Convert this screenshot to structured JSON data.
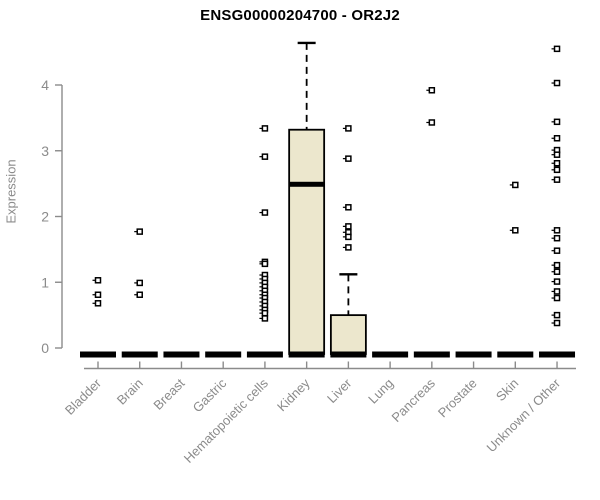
{
  "chart_data": {
    "type": "box",
    "title": "ENSG00000204700 - OR2J2",
    "ylabel": "Expression",
    "xlabel": "",
    "ylim": [
      0,
      4.8
    ],
    "yticks": [
      0,
      1,
      2,
      3,
      4
    ],
    "grid": false,
    "legend": "none",
    "categories": [
      "Bladder",
      "Brain",
      "Breast",
      "Gastric",
      "Hematopoietic cells",
      "Kidney",
      "Liver",
      "Lung",
      "Pancreas",
      "Prostate",
      "Skin",
      "Unknown / Other"
    ],
    "boxes": [
      {
        "category": "Bladder",
        "q1": 0,
        "median": 0,
        "q3": 0,
        "whisker_low": 0,
        "whisker_high": 0,
        "outliers": [
          1.03,
          0.81,
          0.68
        ]
      },
      {
        "category": "Brain",
        "q1": 0,
        "median": 0,
        "q3": 0,
        "whisker_low": 0,
        "whisker_high": 0,
        "outliers": [
          1.77,
          0.99,
          0.81
        ]
      },
      {
        "category": "Breast",
        "q1": 0,
        "median": 0,
        "q3": 0,
        "whisker_low": 0,
        "whisker_high": 0,
        "outliers": []
      },
      {
        "category": "Gastric",
        "q1": 0,
        "median": 0,
        "q3": 0,
        "whisker_low": 0,
        "whisker_high": 0,
        "outliers": []
      },
      {
        "category": "Hematopoietic cells",
        "q1": 0,
        "median": 0,
        "q3": 0,
        "whisker_low": 0,
        "whisker_high": 0,
        "outliers": [
          3.34,
          2.91,
          2.06,
          1.31,
          1.28,
          1.11,
          1.05,
          0.99,
          0.93,
          0.87,
          0.81,
          0.76,
          0.7,
          0.64,
          0.58,
          0.53,
          0.45
        ]
      },
      {
        "category": "Kidney",
        "q1": 0,
        "median": 2.49,
        "q3": 3.32,
        "whisker_low": 0,
        "whisker_high": 4.64,
        "outliers": []
      },
      {
        "category": "Liver",
        "q1": 0,
        "median": 0,
        "q3": 0.5,
        "whisker_low": 0,
        "whisker_high": 1.12,
        "outliers": [
          3.34,
          2.88,
          2.14,
          1.85,
          1.76,
          1.69,
          1.53
        ]
      },
      {
        "category": "Lung",
        "q1": 0,
        "median": 0,
        "q3": 0,
        "whisker_low": 0,
        "whisker_high": 0,
        "outliers": []
      },
      {
        "category": "Pancreas",
        "q1": 0,
        "median": 0,
        "q3": 0,
        "whisker_low": 0,
        "whisker_high": 0,
        "outliers": [
          3.92,
          3.43
        ]
      },
      {
        "category": "Prostate",
        "q1": 0,
        "median": 0,
        "q3": 0,
        "whisker_low": 0,
        "whisker_high": 0,
        "outliers": []
      },
      {
        "category": "Skin",
        "q1": 0,
        "median": 0,
        "q3": 0,
        "whisker_low": 0,
        "whisker_high": 0,
        "outliers": [
          2.48,
          1.79
        ]
      },
      {
        "category": "Unknown / Other",
        "q1": 0,
        "median": 0,
        "q3": 0,
        "whisker_low": 0,
        "whisker_high": 0,
        "outliers": [
          4.55,
          4.03,
          3.44,
          3.19,
          3.01,
          2.94,
          2.81,
          2.71,
          2.56,
          1.79,
          1.67,
          1.48,
          1.26,
          1.16,
          1.01,
          0.86,
          0.76,
          0.5,
          0.38
        ]
      }
    ],
    "colors": {
      "box_fill": "#ece7cd",
      "box_stroke": "#000000",
      "median": "#000000",
      "axis": "#8b8b8b",
      "tick_label": "#8b8b8b",
      "title": "#000000",
      "background": "#ffffff"
    }
  }
}
